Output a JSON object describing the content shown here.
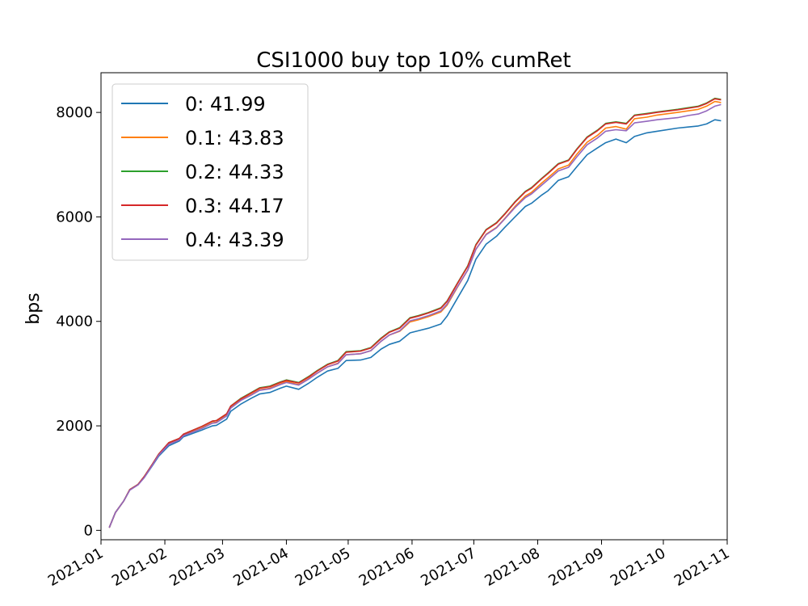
{
  "chart_data": {
    "type": "line",
    "title": "CSI1000 buy top 10% cumRet",
    "xlabel": "",
    "ylabel": "bps",
    "xlim": [
      "2021-01-01",
      "2021-11-01"
    ],
    "ylim": [
      -180,
      8760
    ],
    "x_ticks": [
      "2021-01",
      "2021-02",
      "2021-03",
      "2021-04",
      "2021-05",
      "2021-06",
      "2021-07",
      "2021-08",
      "2021-09",
      "2021-10",
      "2021-11"
    ],
    "y_ticks": [
      0,
      2000,
      4000,
      6000,
      8000
    ],
    "legend_position": "upper-left",
    "grid": false,
    "x": [
      "2021-01-05",
      "2021-01-08",
      "2021-01-12",
      "2021-01-15",
      "2021-01-19",
      "2021-01-22",
      "2021-01-26",
      "2021-01-29",
      "2021-02-03",
      "2021-02-08",
      "2021-02-10",
      "2021-02-19",
      "2021-02-24",
      "2021-02-26",
      "2021-03-03",
      "2021-03-05",
      "2021-03-10",
      "2021-03-15",
      "2021-03-19",
      "2021-03-24",
      "2021-03-29",
      "2021-04-01",
      "2021-04-07",
      "2021-04-12",
      "2021-04-16",
      "2021-04-21",
      "2021-04-26",
      "2021-04-30",
      "2021-05-07",
      "2021-05-12",
      "2021-05-17",
      "2021-05-21",
      "2021-05-26",
      "2021-05-31",
      "2021-06-04",
      "2021-06-09",
      "2021-06-15",
      "2021-06-18",
      "2021-06-23",
      "2021-06-28",
      "2021-07-02",
      "2021-07-07",
      "2021-07-12",
      "2021-07-16",
      "2021-07-21",
      "2021-07-26",
      "2021-07-29",
      "2021-08-03",
      "2021-08-06",
      "2021-08-11",
      "2021-08-16",
      "2021-08-20",
      "2021-08-25",
      "2021-08-30",
      "2021-09-03",
      "2021-09-08",
      "2021-09-13",
      "2021-09-17",
      "2021-09-23",
      "2021-09-28",
      "2021-10-08",
      "2021-10-13",
      "2021-10-18",
      "2021-10-22",
      "2021-10-26",
      "2021-10-29"
    ],
    "series": [
      {
        "name": "0: 41.99",
        "color": "#1f77b4",
        "values": [
          50,
          340,
          560,
          780,
          880,
          1010,
          1240,
          1420,
          1620,
          1710,
          1790,
          1920,
          2000,
          2010,
          2130,
          2280,
          2420,
          2530,
          2610,
          2640,
          2720,
          2760,
          2700,
          2820,
          2930,
          3050,
          3100,
          3250,
          3260,
          3310,
          3470,
          3560,
          3620,
          3780,
          3820,
          3870,
          3950,
          4100,
          4440,
          4780,
          5190,
          5480,
          5630,
          5800,
          6000,
          6200,
          6260,
          6420,
          6500,
          6700,
          6770,
          6960,
          7190,
          7320,
          7420,
          7490,
          7420,
          7540,
          7610,
          7640,
          7700,
          7720,
          7740,
          7780,
          7860,
          7840
        ]
      },
      {
        "name": "0.1: 43.83",
        "color": "#ff7f0e",
        "values": [
          50,
          340,
          560,
          780,
          880,
          1020,
          1260,
          1450,
          1660,
          1740,
          1820,
          1960,
          2060,
          2070,
          2200,
          2350,
          2500,
          2600,
          2690,
          2720,
          2800,
          2850,
          2790,
          2910,
          3010,
          3130,
          3200,
          3360,
          3380,
          3440,
          3620,
          3740,
          3810,
          3990,
          4030,
          4090,
          4180,
          4310,
          4650,
          4980,
          5380,
          5670,
          5800,
          5970,
          6200,
          6400,
          6470,
          6650,
          6750,
          6920,
          6990,
          7200,
          7430,
          7560,
          7700,
          7730,
          7680,
          7880,
          7910,
          7950,
          8000,
          8030,
          8060,
          8120,
          8210,
          8190
        ]
      },
      {
        "name": "0.2: 44.33",
        "color": "#2ca02c",
        "values": [
          50,
          340,
          560,
          780,
          880,
          1030,
          1270,
          1460,
          1680,
          1760,
          1840,
          1990,
          2090,
          2100,
          2230,
          2380,
          2530,
          2640,
          2730,
          2760,
          2840,
          2880,
          2830,
          2950,
          3060,
          3180,
          3250,
          3420,
          3440,
          3500,
          3680,
          3800,
          3880,
          4070,
          4110,
          4170,
          4260,
          4390,
          4730,
          5060,
          5470,
          5760,
          5890,
          6060,
          6290,
          6490,
          6560,
          6740,
          6840,
          7020,
          7090,
          7300,
          7530,
          7660,
          7790,
          7820,
          7790,
          7950,
          7980,
          8010,
          8060,
          8090,
          8120,
          8180,
          8270,
          8250
        ]
      },
      {
        "name": "0.3: 44.17",
        "color": "#d62728",
        "values": [
          50,
          340,
          560,
          780,
          880,
          1030,
          1270,
          1460,
          1680,
          1760,
          1840,
          1990,
          2090,
          2100,
          2230,
          2380,
          2520,
          2630,
          2720,
          2750,
          2830,
          2870,
          2820,
          2940,
          3050,
          3170,
          3240,
          3410,
          3430,
          3490,
          3670,
          3790,
          3870,
          4060,
          4100,
          4160,
          4250,
          4380,
          4720,
          5050,
          5460,
          5750,
          5880,
          6050,
          6280,
          6480,
          6550,
          6730,
          6830,
          7010,
          7080,
          7290,
          7520,
          7650,
          7780,
          7810,
          7780,
          7940,
          7970,
          8000,
          8050,
          8080,
          8110,
          8170,
          8260,
          8240
        ]
      },
      {
        "name": "0.4: 43.39",
        "color": "#9467bd",
        "values": [
          50,
          340,
          560,
          770,
          870,
          1010,
          1250,
          1440,
          1650,
          1730,
          1810,
          1950,
          2050,
          2060,
          2190,
          2340,
          2490,
          2590,
          2680,
          2710,
          2790,
          2830,
          2780,
          2900,
          3010,
          3130,
          3190,
          3360,
          3380,
          3440,
          3620,
          3740,
          3820,
          4010,
          4050,
          4110,
          4200,
          4330,
          4660,
          4980,
          5380,
          5660,
          5790,
          5960,
          6180,
          6370,
          6440,
          6610,
          6710,
          6880,
          6950,
          7150,
          7380,
          7510,
          7640,
          7670,
          7650,
          7800,
          7830,
          7860,
          7900,
          7940,
          7970,
          8030,
          8120,
          8150
        ]
      }
    ]
  }
}
